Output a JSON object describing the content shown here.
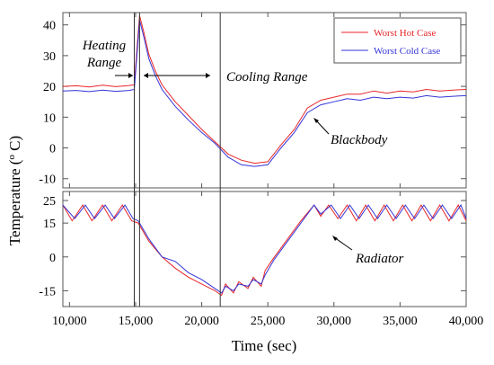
{
  "chart_data": [
    {
      "type": "line",
      "panel": "top",
      "ylim": [
        -13,
        44
      ],
      "xlim": [
        9500,
        40000
      ],
      "yticks": [
        -10,
        0,
        10,
        20,
        30,
        40
      ],
      "ytick_labels": [
        "-10",
        "0",
        "10",
        "20",
        "30",
        "40"
      ],
      "grid": false,
      "legend_position": "top-right",
      "annotations": [
        "Heating Range",
        "Cooling Range",
        "Blackbody"
      ],
      "series": [
        {
          "name": "Worst Hot Case",
          "color": "#e8262a",
          "x": [
            9500,
            10500,
            11500,
            12500,
            13500,
            14500,
            14900,
            15100,
            15300,
            15600,
            16000,
            16500,
            17000,
            18000,
            19000,
            20000,
            21000,
            22000,
            23000,
            24000,
            25000,
            26000,
            27000,
            28000,
            29000,
            30000,
            31000,
            32000,
            33000,
            34000,
            35000,
            36000,
            37000,
            38000,
            39000,
            40000
          ],
          "y": [
            20,
            20.2,
            19.8,
            20.4,
            19.9,
            20.3,
            20.5,
            32,
            43,
            38,
            30.5,
            25,
            20.5,
            15,
            10.5,
            6,
            2,
            -2,
            -4,
            -5,
            -4.5,
            1,
            6,
            13,
            15.5,
            16.5,
            17.5,
            17.5,
            18.5,
            17.8,
            18.5,
            18.2,
            19,
            18.5,
            18.8,
            19
          ]
        },
        {
          "name": "Worst Cold Case",
          "color": "#3434d8",
          "x": [
            9500,
            10500,
            11500,
            12500,
            13500,
            14500,
            14900,
            15100,
            15300,
            15600,
            16000,
            16500,
            17000,
            18000,
            19000,
            20000,
            21000,
            22000,
            23000,
            24000,
            25000,
            26000,
            27000,
            28000,
            29000,
            30000,
            31000,
            32000,
            33000,
            34000,
            35000,
            36000,
            37000,
            38000,
            39000,
            40000
          ],
          "y": [
            18.5,
            18.7,
            18.3,
            18.8,
            18.4,
            18.7,
            19,
            30,
            41.5,
            36.5,
            29,
            23.5,
            19,
            13.5,
            9,
            5,
            1.5,
            -3,
            -5.5,
            -6,
            -5.5,
            0,
            5,
            11.5,
            14,
            15,
            16,
            15.5,
            16.5,
            16,
            16.5,
            16.2,
            17,
            16.5,
            16.8,
            17
          ]
        }
      ]
    },
    {
      "type": "line",
      "panel": "bottom",
      "ylim": [
        -22,
        29
      ],
      "xlim": [
        9500,
        40000
      ],
      "yticks": [
        -15,
        0,
        15
      ],
      "extra_ytick_labels": [
        {
          "value": 25,
          "label": "25"
        }
      ],
      "ytick_labels": [
        "25",
        "15",
        "0",
        "-15"
      ],
      "xticks": [
        10000,
        15000,
        20000,
        25000,
        30000,
        35000,
        40000
      ],
      "xtick_labels": [
        "10,000",
        "15,000",
        "20,000",
        "25,000",
        "30,000",
        "35,000",
        "40,000"
      ],
      "grid": false,
      "annotations": [
        "Radiator"
      ],
      "series": [
        {
          "name": "Worst Hot Case",
          "color": "#e8262a",
          "x": [
            9500,
            10200,
            11000,
            11700,
            12500,
            13200,
            14000,
            14700,
            15200,
            16000,
            17000,
            18000,
            19000,
            20000,
            21000,
            21500,
            21800,
            22400,
            22800,
            23500,
            23900,
            24500,
            24800,
            25500,
            26500,
            27500,
            28500,
            29000,
            29600,
            30300,
            31000,
            31700,
            32400,
            33100,
            33800,
            34500,
            35200,
            35900,
            36600,
            37300,
            38000,
            38700,
            39400,
            40000
          ],
          "y": [
            23,
            16,
            23,
            16,
            23,
            16,
            23,
            16,
            15,
            7,
            0,
            -5,
            -9,
            -12,
            -15,
            -17,
            -12,
            -16,
            -11,
            -14,
            -9,
            -13,
            -6,
            0,
            8,
            16,
            23,
            18,
            23,
            17,
            23,
            16,
            23,
            16,
            23,
            16,
            23,
            16,
            23,
            16,
            23,
            16,
            23,
            16
          ]
        },
        {
          "name": "Worst Cold Case",
          "color": "#3434d8",
          "x": [
            9500,
            10400,
            11200,
            11900,
            12700,
            13400,
            14200,
            14800,
            15200,
            16000,
            17000,
            18000,
            19000,
            20000,
            21000,
            21500,
            21800,
            22400,
            22800,
            23500,
            23900,
            24500,
            24800,
            25500,
            26500,
            27500,
            28500,
            29000,
            29800,
            30500,
            31200,
            31900,
            32600,
            33300,
            34000,
            34700,
            35400,
            36100,
            36800,
            37500,
            38200,
            38900,
            39600,
            40000
          ],
          "y": [
            23,
            17,
            23,
            17,
            23,
            17,
            23,
            17,
            16,
            8,
            0,
            -2,
            -7,
            -10,
            -14,
            -16,
            -13,
            -15,
            -12,
            -13,
            -10,
            -12,
            -8,
            -1,
            7,
            15,
            23,
            19,
            23,
            17,
            23,
            17,
            23,
            17,
            23,
            17,
            23,
            17,
            23,
            17,
            23,
            17,
            23,
            17
          ]
        }
      ]
    }
  ],
  "axes": {
    "ylabel": "Temperature (",
    "ylabel_sup": "o",
    "ylabel_tail": " C)",
    "xlabel": "Time (sec)"
  },
  "legend": {
    "hot_label": "Worst Hot Case",
    "cold_label": "Worst Cold Case"
  },
  "annotations": {
    "heating_line1": "Heating",
    "heating_line2": "Range",
    "cooling": "Cooling Range",
    "blackbody": "Blackbody",
    "radiator": "Radiator"
  },
  "markers": {
    "heating_start_x": 14900,
    "heating_end_x": 15300,
    "cooling_end_x": 21400
  },
  "colors": {
    "hot": "#e8262a",
    "cold": "#3434d8",
    "axis": "#555555"
  }
}
